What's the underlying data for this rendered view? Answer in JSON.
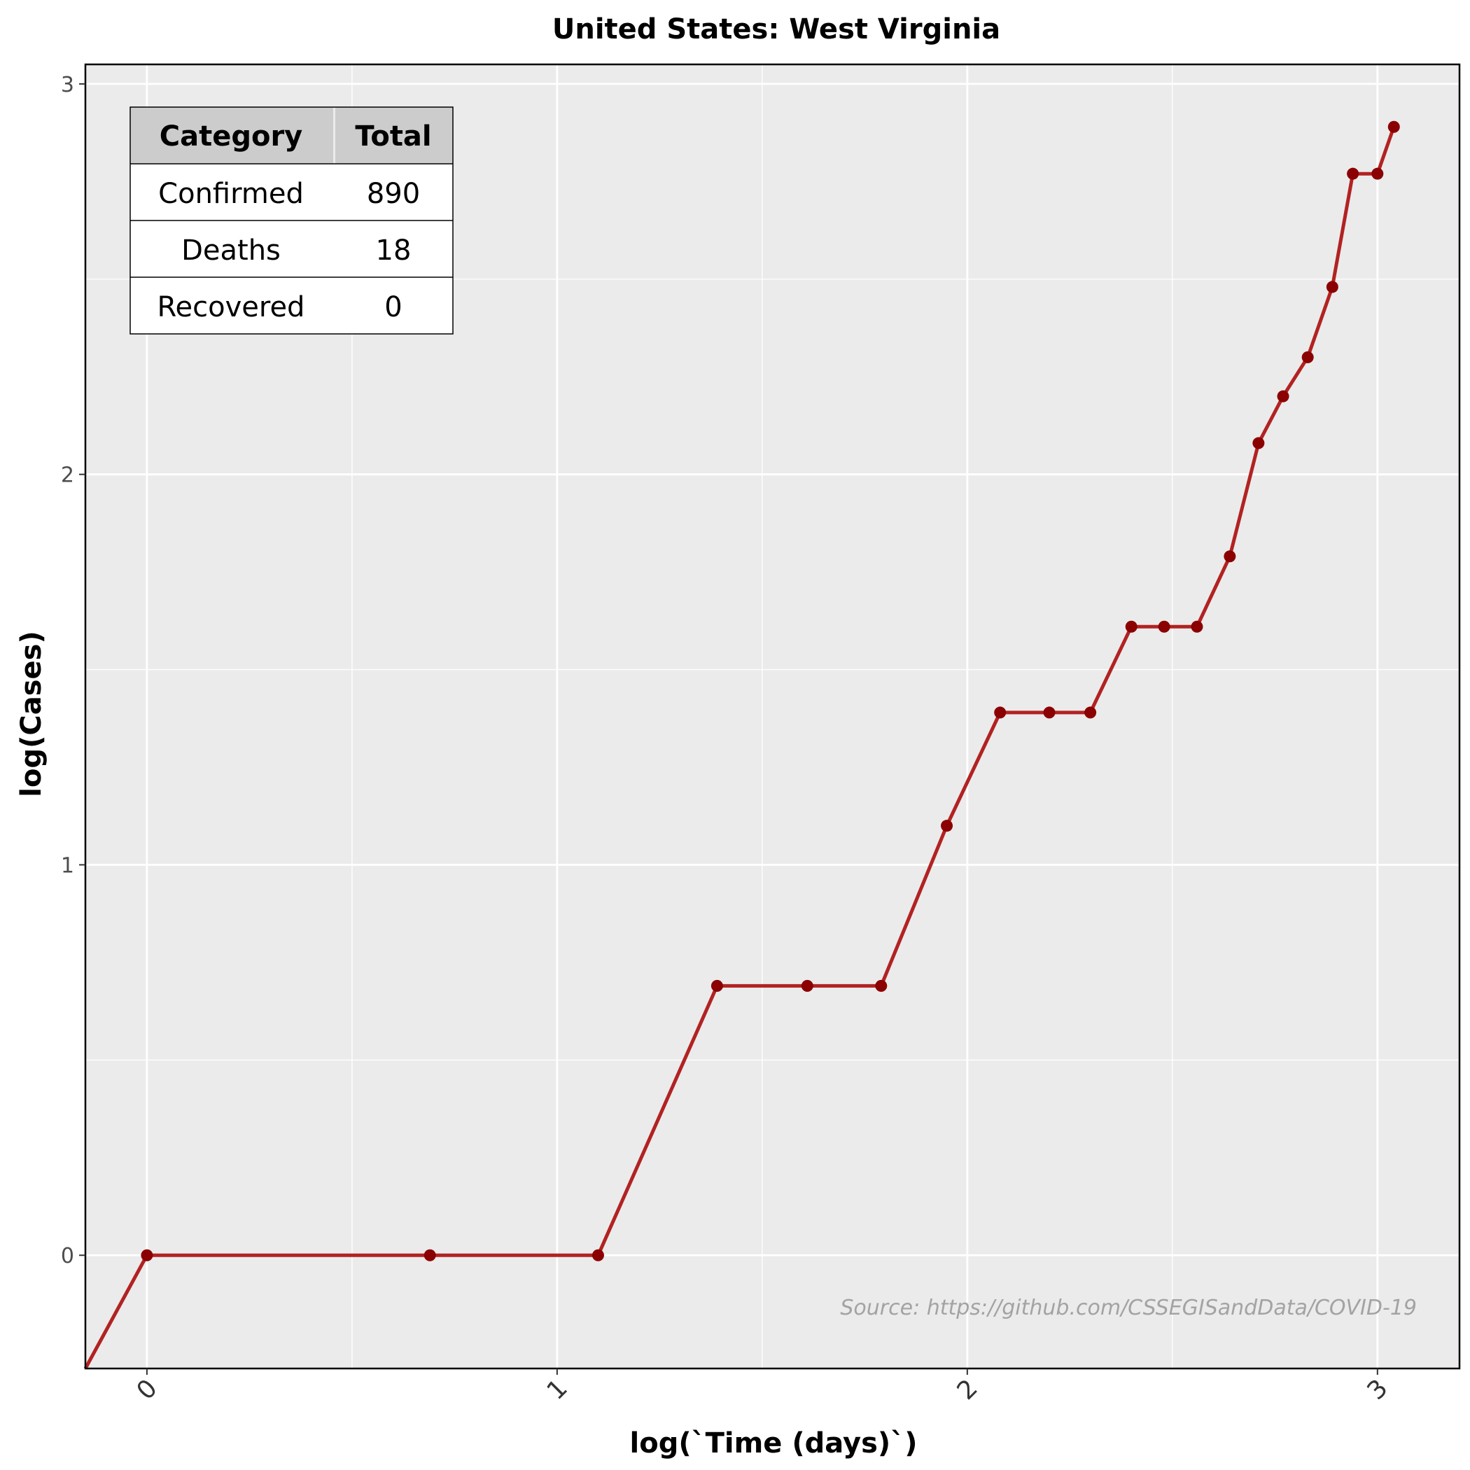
{
  "chart_data": {
    "type": "line",
    "title": "United States: West Virginia",
    "xlabel": "log(`Time (days)`)",
    "ylabel": "log(Cases)",
    "xlim": [
      -0.15,
      3.2
    ],
    "ylim": [
      -0.29,
      3.05
    ],
    "xticks": [
      0,
      1,
      2,
      3
    ],
    "yticks": [
      0,
      1,
      2,
      3
    ],
    "grid": true,
    "series": [
      {
        "color": "#b22222",
        "x": [
          -0.15,
          0,
          0.69,
          1.1,
          1.39,
          1.61,
          1.79,
          1.95,
          2.08,
          2.2,
          2.3,
          2.4,
          2.48,
          2.56,
          2.64,
          2.71,
          2.77,
          2.83,
          2.89,
          2.94,
          3.0,
          3.04
        ],
        "y": [
          -0.29,
          0,
          0,
          0,
          0.69,
          0.69,
          0.69,
          1.1,
          1.39,
          1.39,
          1.39,
          1.61,
          1.61,
          1.61,
          1.79,
          2.08,
          2.2,
          2.3,
          2.48,
          2.77,
          2.77,
          2.89
        ]
      }
    ],
    "table": {
      "headers": [
        "Category",
        "Total"
      ],
      "rows": [
        [
          "Confirmed",
          "890"
        ],
        [
          "Deaths",
          "18"
        ],
        [
          "Recovered",
          "0"
        ]
      ]
    },
    "annotation": "Source: https://github.com/CSSEGISandData/COVID-19"
  },
  "colors": {
    "panel_bg": "#ebebeb",
    "grid": "#ffffff",
    "line": "#b22222",
    "point": "#8b0000",
    "table_header_bg": "#cccccc"
  }
}
